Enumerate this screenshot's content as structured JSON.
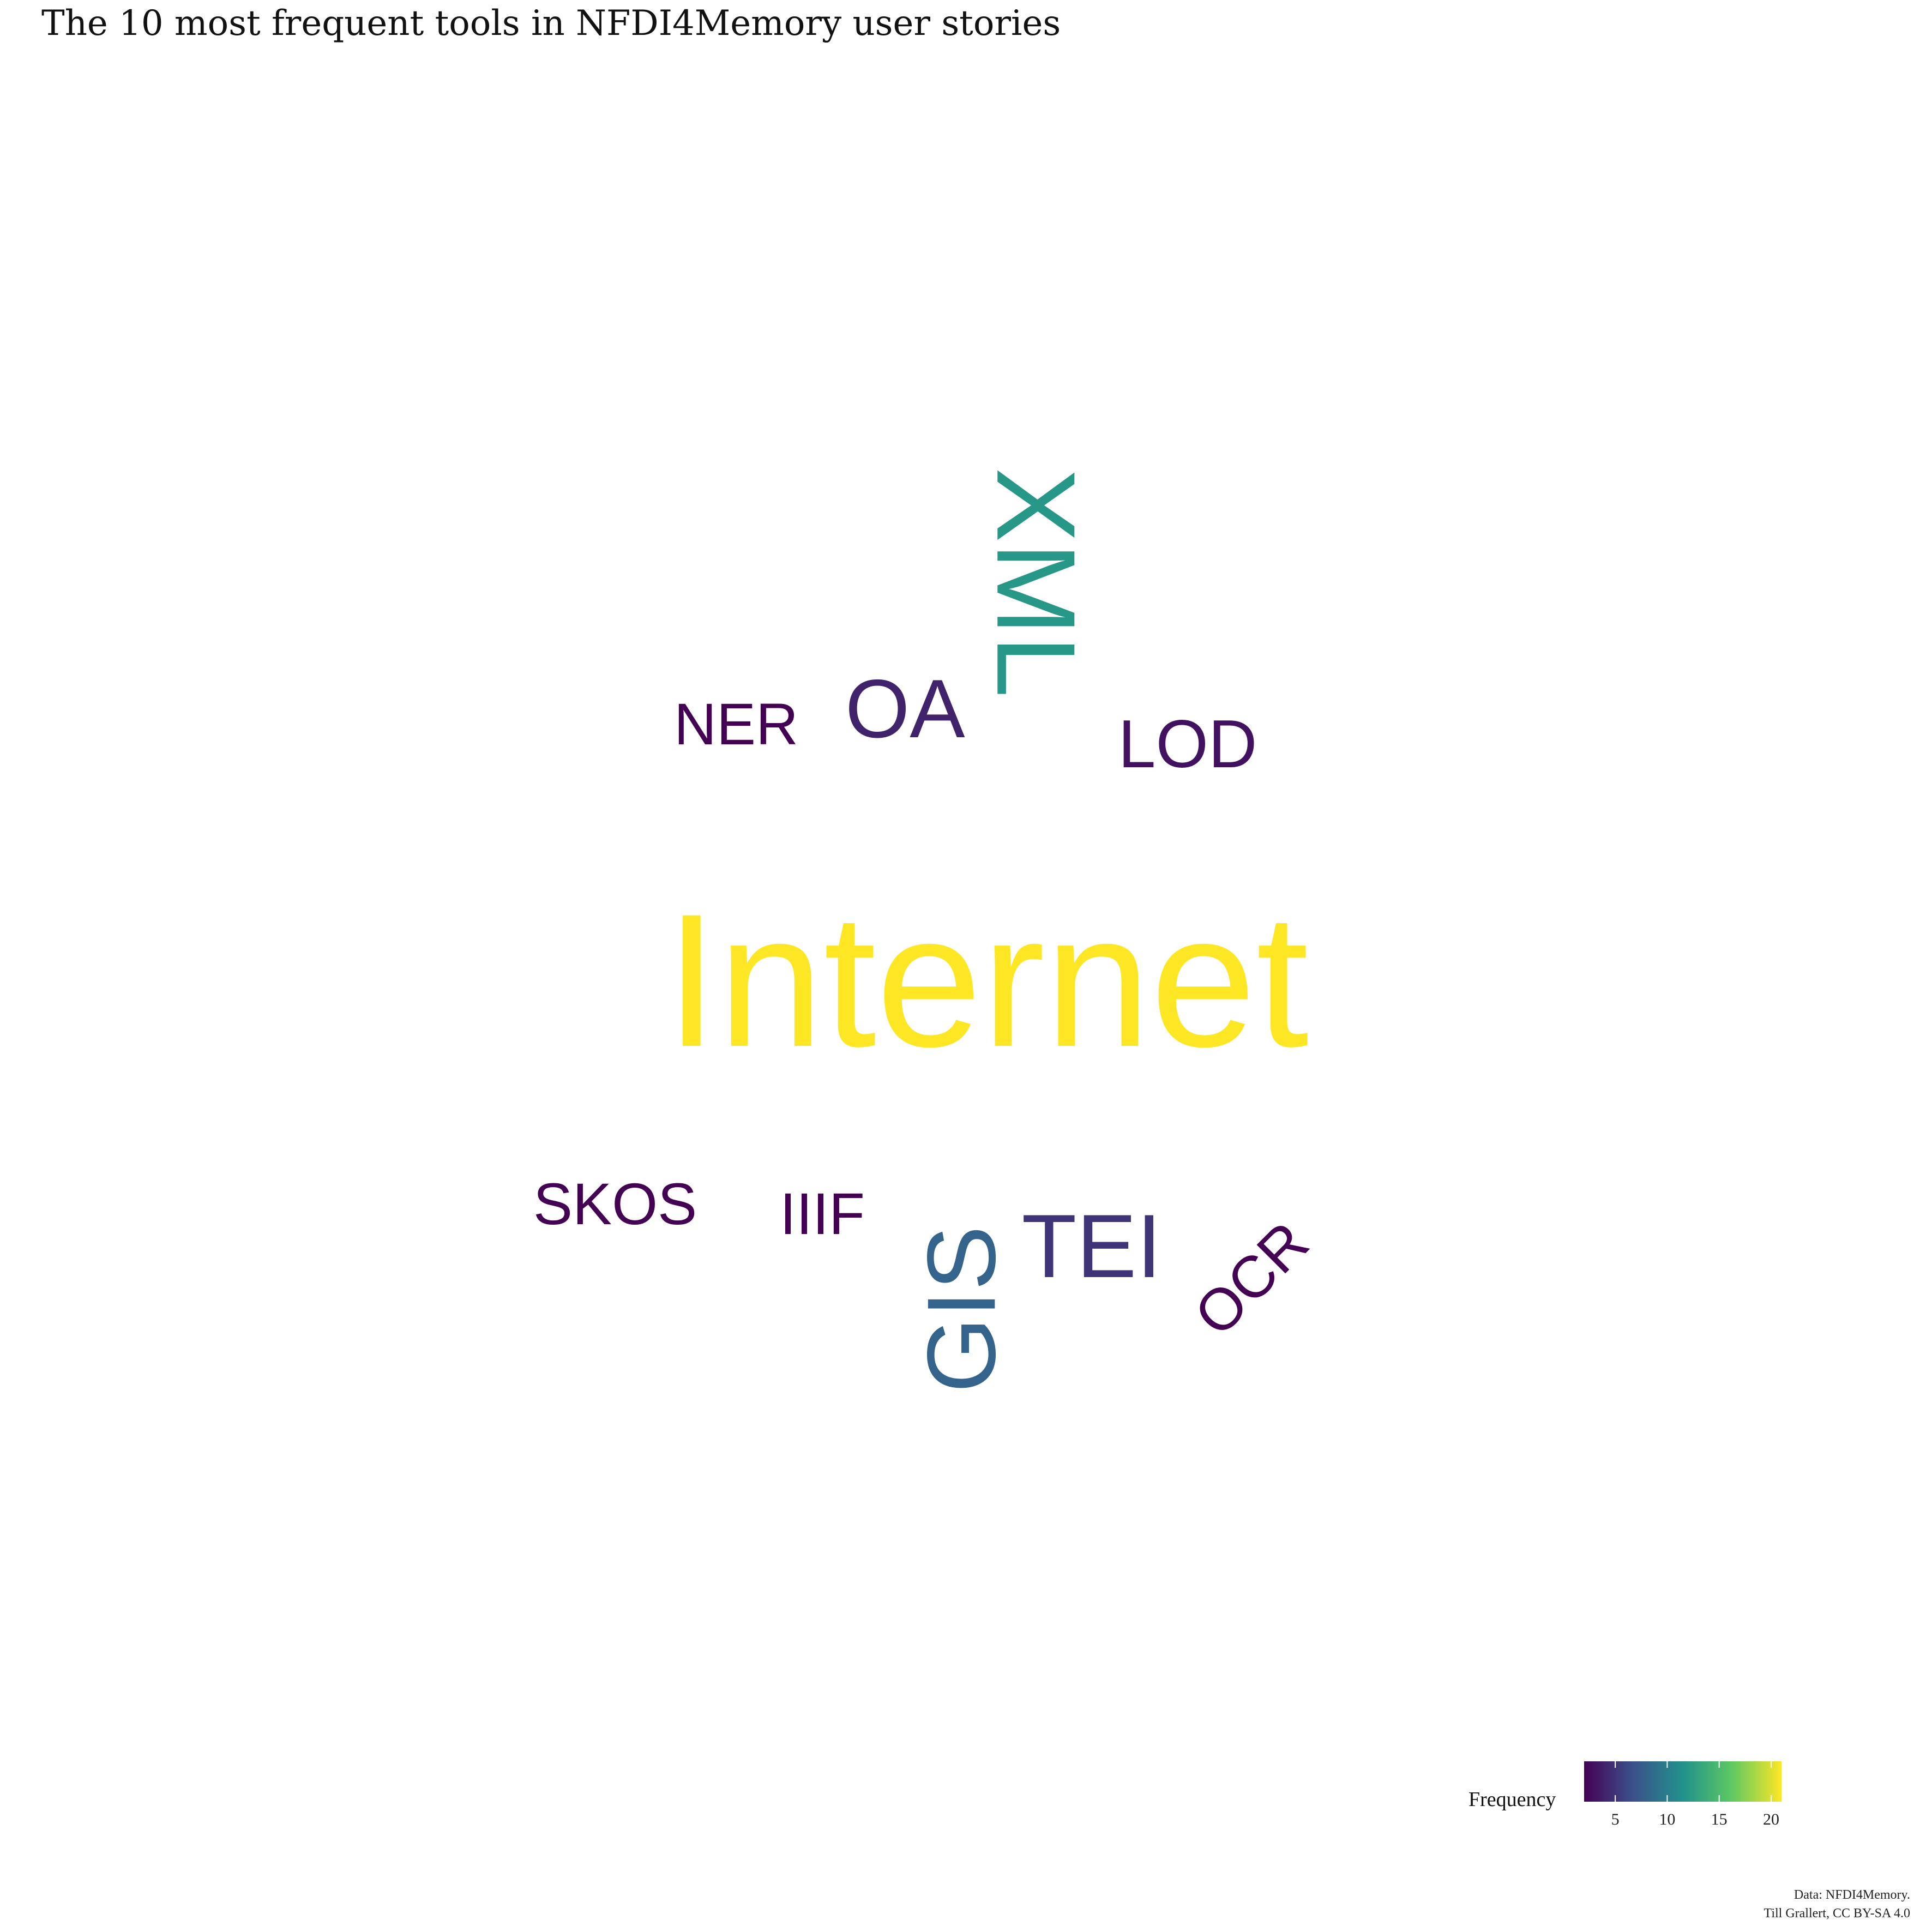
{
  "chart_data": {
    "type": "wordcloud",
    "title": "The 10 most frequent tools in NFDI4Memory user stories",
    "words": [
      {
        "text": "Internet",
        "frequency": 21
      },
      {
        "text": "XML",
        "frequency": 12
      },
      {
        "text": "GIS",
        "frequency": 8
      },
      {
        "text": "TEI",
        "frequency": 5
      },
      {
        "text": "OA",
        "frequency": 4
      },
      {
        "text": "LOD",
        "frequency": 3
      },
      {
        "text": "NER",
        "frequency": 2
      },
      {
        "text": "SKOS",
        "frequency": 2
      },
      {
        "text": "IIIF",
        "frequency": 2
      },
      {
        "text": "OCR",
        "frequency": 2
      }
    ],
    "legend": {
      "title": "Frequency",
      "ticks": [
        5,
        10,
        15,
        20
      ],
      "range": [
        2,
        21
      ],
      "position": "bottom-right",
      "colormap": [
        "#440154",
        "#3b528b",
        "#21918c",
        "#5ec962",
        "#fde725"
      ]
    },
    "caption": [
      "Data: NFDI4Memory.",
      "Till Grallert, CC BY-SA 4.0"
    ]
  }
}
